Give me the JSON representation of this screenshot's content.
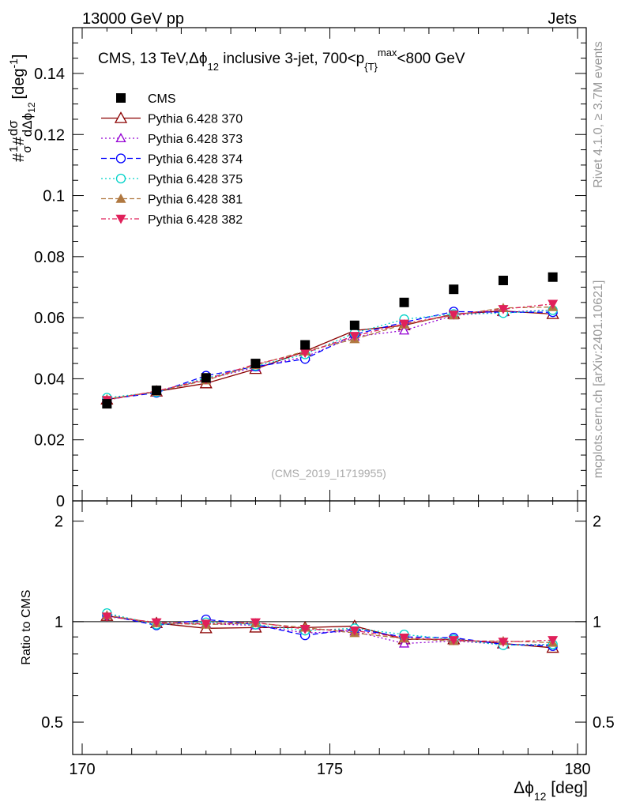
{
  "header": {
    "left": "13000 GeV pp",
    "right": "Jets"
  },
  "side_labels": {
    "rivet": "Rivet 4.1.0, ≥ 3.7M events",
    "mcplots": "mcplots.cern.ch [arXiv:2401.10621]"
  },
  "colors": {
    "cms": "#000000",
    "p370": "#8b0000",
    "p373": "#9400d3",
    "p374": "#0000ff",
    "p375": "#00d2c8",
    "p381": "#b07840",
    "p382": "#e0205a"
  },
  "chart_data": [
    {
      "type": "line",
      "panel": "main",
      "title_parts": {
        "pre": "CMS, 13 TeV,",
        "dphi": "Δϕ",
        "sub12": "12",
        "mid": " inclusive 3-jet, 700<p",
        "subT": "{T}",
        "supmax": "max",
        "post": "<800 GeV"
      },
      "ylabel_parts": {
        "hash1": "#",
        "one": "1",
        "sigma": "σ",
        "hash2": "#",
        "dsigma": "dσ",
        "ddphi": "dΔϕ",
        "sub12": "12",
        "unit": "[deg",
        "sup": "-1",
        "close": "]"
      },
      "watermark": "(CMS_2019_I1719955)",
      "x": [
        170.5,
        171.5,
        172.5,
        173.5,
        174.5,
        175.5,
        176.5,
        177.5,
        178.5,
        179.5
      ],
      "xlim": [
        170,
        180
      ],
      "ylim": [
        0,
        0.155
      ],
      "yticks": [
        0,
        0.02,
        0.04,
        0.06,
        0.08,
        0.1,
        0.12,
        0.14
      ],
      "ytick_labels": [
        "0",
        "0.02",
        "0.04",
        "0.06",
        "0.08",
        "0.1",
        "0.12",
        "0.14"
      ],
      "series": [
        {
          "name": "CMS",
          "key": "cms",
          "values": [
            0.0318,
            0.0362,
            0.0403,
            0.045,
            0.0511,
            0.0575,
            0.065,
            0.0693,
            0.0722,
            0.0733
          ]
        },
        {
          "name": "Pythia 6.428 370",
          "key": "p370",
          "values": [
            0.0332,
            0.0358,
            0.0385,
            0.0432,
            0.049,
            0.0558,
            0.0575,
            0.0612,
            0.0622,
            0.0612
          ]
        },
        {
          "name": "Pythia 6.428 373",
          "key": "p373",
          "values": [
            0.0334,
            0.0357,
            0.0398,
            0.0438,
            0.0472,
            0.0538,
            0.0558,
            0.0608,
            0.0618,
            0.0625
          ]
        },
        {
          "name": "Pythia 6.428 374",
          "key": "p374",
          "values": [
            0.0333,
            0.0354,
            0.041,
            0.044,
            0.0465,
            0.0545,
            0.0585,
            0.062,
            0.0618,
            0.0618
          ]
        },
        {
          "name": "Pythia 6.428 375",
          "key": "p375",
          "values": [
            0.0338,
            0.0356,
            0.0402,
            0.0442,
            0.048,
            0.055,
            0.0595,
            0.0612,
            0.0615,
            0.0625
          ]
        },
        {
          "name": "Pythia 6.428 381",
          "key": "p381",
          "values": [
            0.0333,
            0.0358,
            0.0395,
            0.0445,
            0.049,
            0.053,
            0.0578,
            0.0608,
            0.0632,
            0.0635
          ]
        },
        {
          "name": "Pythia 6.428 382",
          "key": "p382",
          "values": [
            0.033,
            0.036,
            0.0398,
            0.0448,
            0.0485,
            0.054,
            0.058,
            0.061,
            0.0628,
            0.0645
          ]
        }
      ]
    },
    {
      "type": "line",
      "panel": "ratio",
      "ylabel": "Ratio to CMS",
      "x": [
        170.5,
        171.5,
        172.5,
        173.5,
        174.5,
        175.5,
        176.5,
        177.5,
        178.5,
        179.5
      ],
      "xlim": [
        170,
        180
      ],
      "ylim": [
        0.4,
        2.3
      ],
      "ytick_labels": [
        "0.5",
        "1",
        "2"
      ],
      "yticks": [
        0.5,
        1,
        2
      ],
      "xticks": [
        170,
        175,
        180
      ],
      "xtick_labels": [
        "170",
        "175",
        "180"
      ],
      "xlabel_parts": {
        "dphi": "Δϕ",
        "sub": "12",
        "unit": " [deg]"
      },
      "series": [
        {
          "name": "Pythia 6.428 370",
          "key": "p370",
          "values": [
            1.04,
            0.99,
            0.955,
            0.96,
            0.96,
            0.97,
            0.885,
            0.885,
            0.86,
            0.835
          ]
        },
        {
          "name": "Pythia 6.428 373",
          "key": "p373",
          "values": [
            1.05,
            0.985,
            0.985,
            0.975,
            0.925,
            0.935,
            0.86,
            0.875,
            0.855,
            0.855
          ]
        },
        {
          "name": "Pythia 6.428 374",
          "key": "p374",
          "values": [
            1.045,
            0.975,
            1.015,
            0.98,
            0.91,
            0.95,
            0.9,
            0.895,
            0.855,
            0.845
          ]
        },
        {
          "name": "Pythia 6.428 375",
          "key": "p375",
          "values": [
            1.06,
            0.98,
            0.995,
            0.98,
            0.94,
            0.955,
            0.915,
            0.885,
            0.85,
            0.855
          ]
        },
        {
          "name": "Pythia 6.428 381",
          "key": "p381",
          "values": [
            1.045,
            0.99,
            0.98,
            0.99,
            0.96,
            0.925,
            0.89,
            0.875,
            0.875,
            0.865
          ]
        },
        {
          "name": "Pythia 6.428 382",
          "key": "p382",
          "values": [
            1.035,
            0.995,
            0.985,
            0.995,
            0.95,
            0.94,
            0.895,
            0.88,
            0.87,
            0.88
          ]
        }
      ]
    }
  ]
}
